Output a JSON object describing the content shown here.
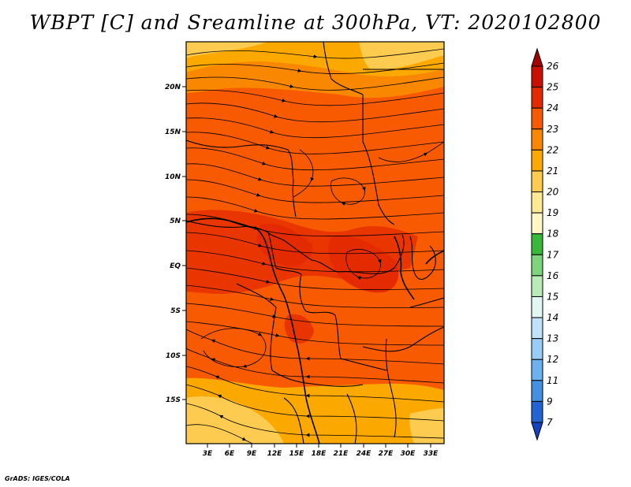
{
  "title": "WBPT [C] and Sreamline at 300hPa, VT: 2020102800",
  "credit": "GrADS: IGES/COLA",
  "map": {
    "lat_labels": [
      "20N",
      "15N",
      "10N",
      "5N",
      "EQ",
      "5S",
      "10S",
      "15S"
    ],
    "lon_labels": [
      "3E",
      "6E",
      "9E",
      "12E",
      "15E",
      "18E",
      "21E",
      "24E",
      "27E",
      "30E",
      "33E"
    ]
  },
  "colorbar": {
    "labels": [
      "26",
      "25",
      "24",
      "23",
      "22",
      "21",
      "20",
      "19",
      "18",
      "17",
      "16",
      "15",
      "14",
      "13",
      "12",
      "11",
      "9",
      "7"
    ],
    "colors": [
      "#a50000",
      "#c80f00",
      "#e42a00",
      "#f75a00",
      "#fa8700",
      "#fba900",
      "#fdcb4f",
      "#fde993",
      "#fff7c4",
      "#3ab83a",
      "#7dd47d",
      "#b9ebb9",
      "#e0f7f3",
      "#bfe2fa",
      "#99cdf6",
      "#6db2f0",
      "#4590e3",
      "#2264d1",
      "#1540c0"
    ]
  }
}
